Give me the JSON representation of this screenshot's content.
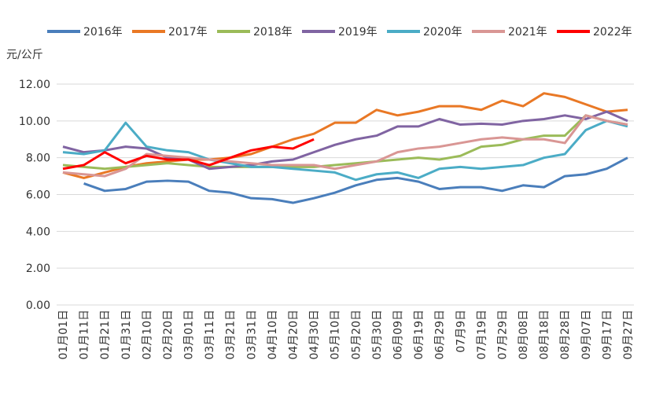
{
  "chart_data": {
    "type": "line",
    "y_label": "元/公斤",
    "categories": [
      "01月01日",
      "01月11日",
      "01月21日",
      "01月31日",
      "02月10日",
      "02月20日",
      "03月01日",
      "03月11日",
      "03月21日",
      "03月31日",
      "04月10日",
      "04月20日",
      "04月30日",
      "05月10日",
      "05月20日",
      "05月30日",
      "06月09日",
      "06月19日",
      "06月29日",
      "07月9日",
      "07月19日",
      "07月29日",
      "08月08日",
      "08月18日",
      "08月28日",
      "09月07日",
      "09月17日",
      "09月27日"
    ],
    "series": [
      {
        "name": "2016年",
        "color": "#4a7ebb",
        "values": [
          null,
          6.6,
          6.2,
          6.3,
          6.7,
          6.75,
          6.7,
          6.2,
          6.1,
          5.8,
          5.75,
          5.55,
          5.8,
          6.1,
          6.5,
          6.8,
          6.9,
          6.7,
          6.3,
          6.4,
          6.4,
          6.2,
          6.5,
          6.4,
          7.0,
          7.1,
          7.4,
          8.0
        ]
      },
      {
        "name": "2017年",
        "color": "#e97825",
        "values": [
          7.2,
          6.9,
          7.2,
          7.5,
          7.7,
          7.8,
          7.9,
          7.9,
          8.0,
          8.2,
          8.6,
          9.0,
          9.3,
          9.9,
          9.9,
          10.6,
          10.3,
          10.5,
          10.8,
          10.8,
          10.6,
          11.1,
          10.8,
          11.5,
          11.3,
          10.9,
          10.5,
          10.6
        ]
      },
      {
        "name": "2018年",
        "color": "#9bbb59",
        "values": [
          7.6,
          7.5,
          7.4,
          7.5,
          7.6,
          7.7,
          7.6,
          7.5,
          7.5,
          7.5,
          7.5,
          7.5,
          7.5,
          7.6,
          7.7,
          7.8,
          7.9,
          8.0,
          7.9,
          8.1,
          8.6,
          8.7,
          9.0,
          9.2,
          9.2,
          10.3,
          10.0,
          9.8
        ]
      },
      {
        "name": "2019年",
        "color": "#8064a2",
        "values": [
          8.6,
          8.3,
          8.4,
          8.6,
          8.5,
          8.0,
          7.9,
          7.4,
          7.5,
          7.6,
          7.8,
          7.9,
          8.3,
          8.7,
          9.0,
          9.2,
          9.7,
          9.7,
          10.1,
          9.8,
          9.85,
          9.8,
          10.0,
          10.1,
          10.3,
          10.1,
          10.5,
          10.0
        ]
      },
      {
        "name": "2020年",
        "color": "#4bacc6",
        "values": [
          8.3,
          8.2,
          8.4,
          9.9,
          8.6,
          8.4,
          8.3,
          7.9,
          7.7,
          7.5,
          7.5,
          7.4,
          7.3,
          7.2,
          6.8,
          7.1,
          7.2,
          6.9,
          7.4,
          7.5,
          7.4,
          7.5,
          7.6,
          8.0,
          8.2,
          9.5,
          10.0,
          9.7
        ]
      },
      {
        "name": "2021年",
        "color": "#d99694",
        "values": [
          7.2,
          7.1,
          7.0,
          7.4,
          8.2,
          8.1,
          8.0,
          7.9,
          7.8,
          7.7,
          7.6,
          7.6,
          7.6,
          7.4,
          7.6,
          7.8,
          8.3,
          8.5,
          8.6,
          8.8,
          9.0,
          9.1,
          9.0,
          9.0,
          8.8,
          10.3,
          10.0,
          9.8
        ]
      },
      {
        "name": "2022年",
        "color": "#ff0000",
        "values": [
          7.4,
          7.6,
          8.3,
          7.7,
          8.1,
          7.9,
          7.9,
          7.6,
          8.0,
          8.4,
          8.6,
          8.5,
          9.0,
          null,
          null,
          null,
          null,
          null,
          null,
          null,
          null,
          null,
          null,
          null,
          null,
          null,
          null,
          null
        ]
      }
    ],
    "ylim": [
      0,
      12
    ],
    "yticks": [
      {
        "value": 0,
        "label": "0.00"
      },
      {
        "value": 2,
        "label": "2.00"
      },
      {
        "value": 4,
        "label": "4.00"
      },
      {
        "value": 6,
        "label": "6.00"
      },
      {
        "value": 8,
        "label": "8.00"
      },
      {
        "value": 10,
        "label": "10.00"
      },
      {
        "value": 12,
        "label": "12.00"
      }
    ],
    "grid": true,
    "legend": "top"
  }
}
